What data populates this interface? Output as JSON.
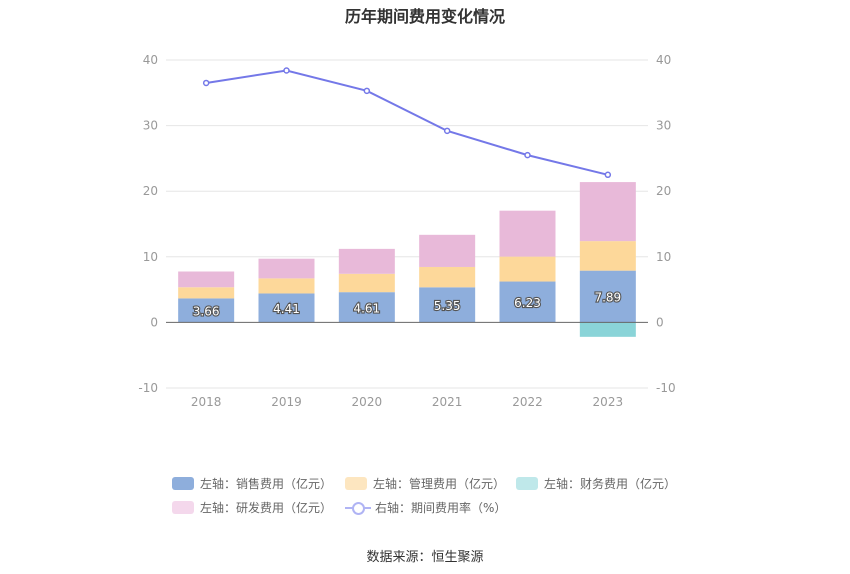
{
  "chart_data": {
    "type": "bar",
    "title": "历年期间费用变化情况",
    "categories": [
      "2018",
      "2019",
      "2020",
      "2021",
      "2022",
      "2023"
    ],
    "left_axis": {
      "min": -10,
      "max": 40,
      "ticks": [
        -10,
        0,
        10,
        20,
        30,
        40
      ]
    },
    "right_axis": {
      "min": -10,
      "max": 40,
      "ticks": [
        -10,
        0,
        10,
        20,
        30,
        40
      ]
    },
    "series": [
      {
        "name": "左轴：销售费用（亿元）",
        "type": "bar",
        "stack": "left",
        "color": "#8eaedc",
        "values": [
          3.66,
          4.41,
          4.61,
          5.35,
          6.23,
          7.89
        ],
        "show_labels": true
      },
      {
        "name": "左轴：管理费用（亿元）",
        "type": "bar",
        "stack": "left",
        "color": "#fdd89a",
        "values": [
          1.7,
          2.3,
          2.8,
          3.1,
          3.8,
          4.5
        ]
      },
      {
        "name": "左轴：财务费用（亿元）",
        "type": "bar",
        "stack": "left",
        "color": "#8ad4d8",
        "values": [
          0.0,
          0.0,
          0.0,
          0.0,
          0.0,
          -2.2
        ]
      },
      {
        "name": "左轴：研发费用（亿元）",
        "type": "bar",
        "stack": "left",
        "color": "#e8b9d9",
        "values": [
          2.4,
          3.0,
          3.8,
          4.9,
          7.0,
          9.0
        ]
      },
      {
        "name": "右轴：期间费用率（%）",
        "type": "line",
        "axis": "right",
        "color": "#7478e8",
        "values": [
          36.5,
          38.4,
          35.3,
          29.2,
          25.5,
          22.5
        ]
      }
    ],
    "legend": [
      {
        "label": "左轴：销售费用（亿元）",
        "color": "#8eaedc",
        "kind": "box"
      },
      {
        "label": "左轴：管理费用（亿元）",
        "color": "#fde6c0",
        "kind": "box"
      },
      {
        "label": "左轴：财务费用（亿元）",
        "color": "#bfe8ea",
        "kind": "box"
      },
      {
        "label": "左轴：研发费用（亿元）",
        "color": "#f4d8ec",
        "kind": "box"
      },
      {
        "label": "右轴：期间费用率（%）",
        "color": "#b0b4f4",
        "kind": "line"
      }
    ],
    "legend_position": "bottom",
    "grid": true
  },
  "footer": {
    "source": "数据来源：恒生聚源"
  }
}
